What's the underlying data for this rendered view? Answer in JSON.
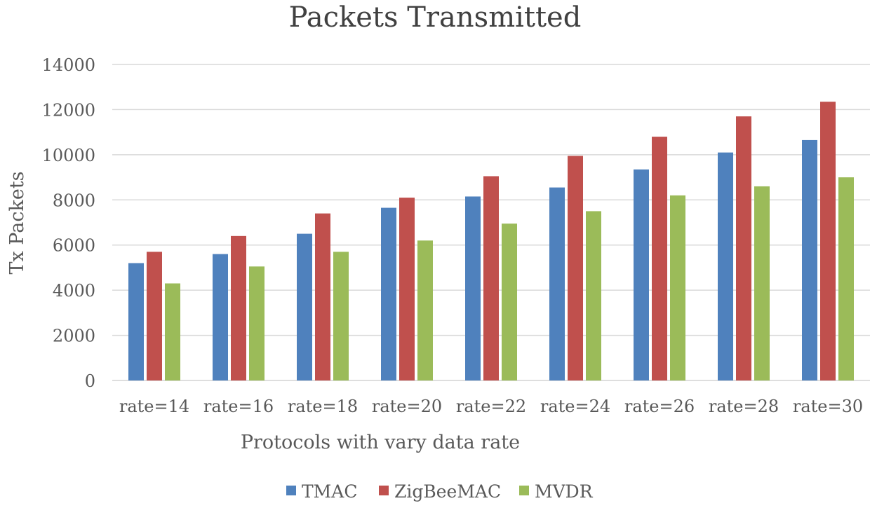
{
  "chart_data": {
    "type": "bar",
    "title": "Packets Transmitted",
    "xlabel": "Protocols with vary data rate",
    "ylabel": "Tx Packets",
    "ylim": [
      0,
      14000
    ],
    "yticks": [
      0,
      2000,
      4000,
      6000,
      8000,
      10000,
      12000,
      14000
    ],
    "grid": true,
    "legend_position": "bottom",
    "categories": [
      "rate=14",
      "rate=16",
      "rate=18",
      "rate=20",
      "rate=22",
      "rate=24",
      "rate=26",
      "rate=28",
      "rate=30"
    ],
    "series": [
      {
        "name": "TMAC",
        "color": "#4f81bd",
        "values": [
          5200,
          5600,
          6500,
          7650,
          8150,
          8550,
          9350,
          10100,
          10650
        ]
      },
      {
        "name": "ZigBeeMAC",
        "color": "#c0504d",
        "values": [
          5700,
          6400,
          7400,
          8100,
          9050,
          9950,
          10800,
          11700,
          12350
        ]
      },
      {
        "name": "MVDR",
        "color": "#9bbb59",
        "values": [
          4300,
          5050,
          5700,
          6200,
          6950,
          7500,
          8200,
          8600,
          9000
        ]
      }
    ]
  }
}
